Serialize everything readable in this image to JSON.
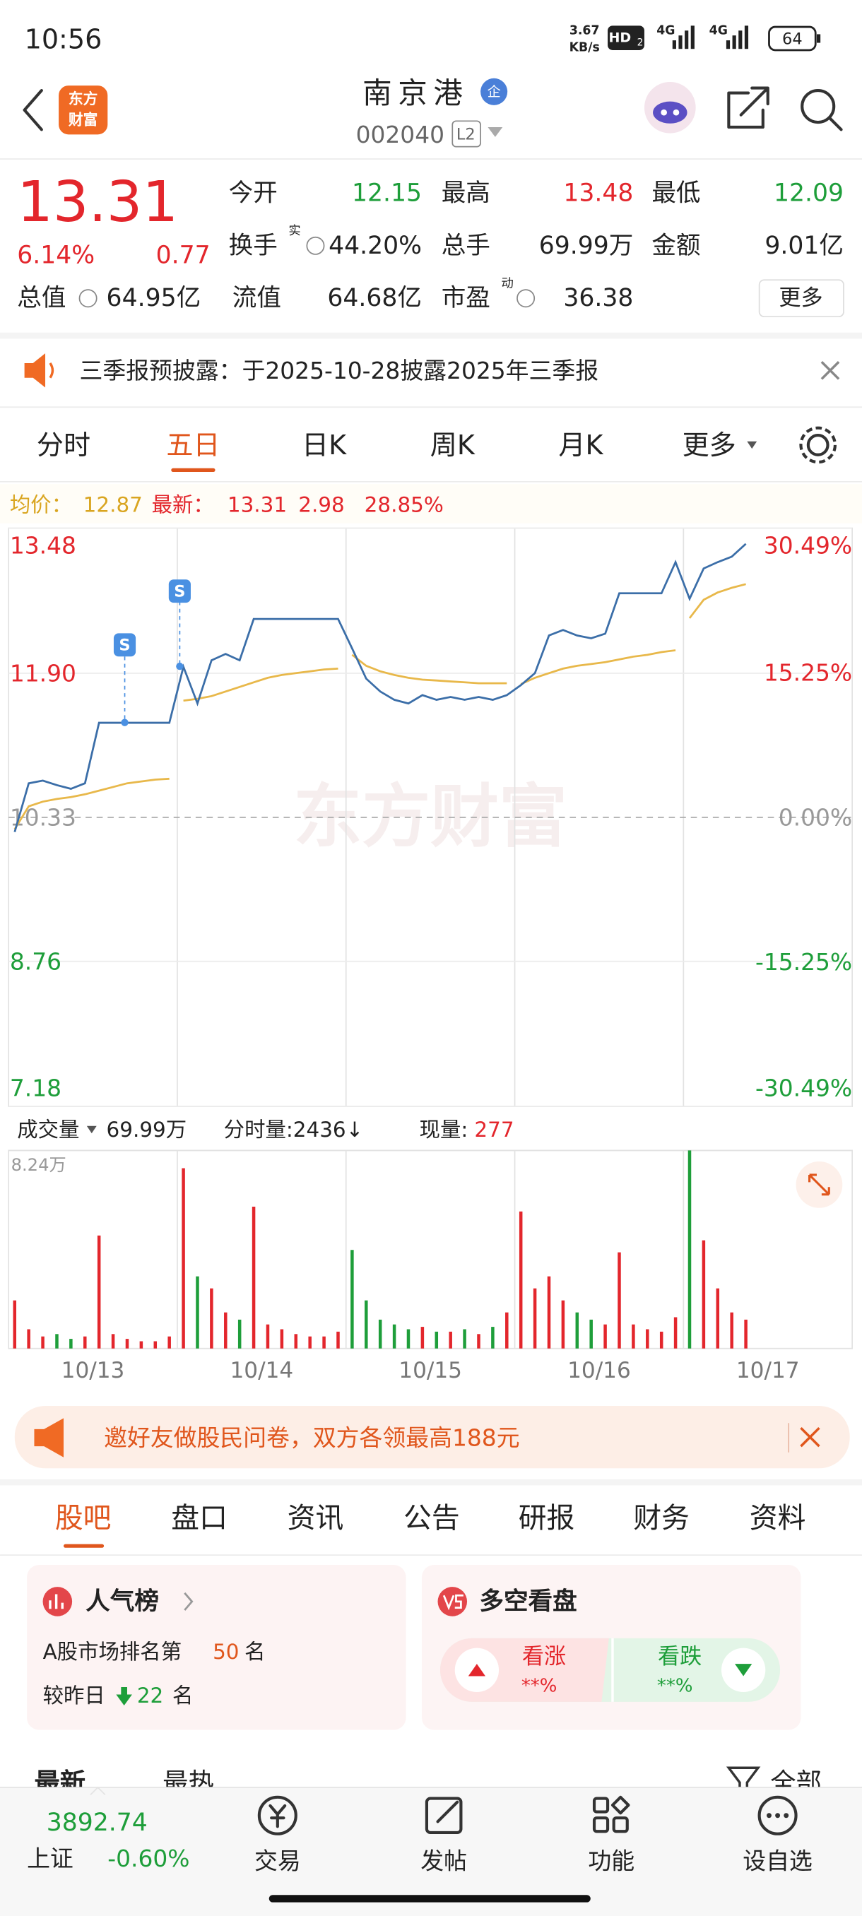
{
  "status_bar": {
    "time": "10:56",
    "speed": "3.67",
    "speed_unit": "KB/s",
    "hd": "HD",
    "hd_sub": "2",
    "network": [
      "4G",
      "4G"
    ],
    "battery": "64"
  },
  "header": {
    "logo": [
      "东方",
      "财富"
    ],
    "name": "南京港",
    "badge": "企",
    "code": "002040",
    "level": "L2"
  },
  "quote": {
    "price": "13.31",
    "change_pct": "6.14%",
    "change": "0.77",
    "fields": [
      [
        "今开",
        "12.15"
      ],
      [
        "最高",
        "13.48"
      ],
      [
        "最低",
        "12.09"
      ],
      [
        "换手",
        "44.20%"
      ],
      [
        "总手",
        "69.99万"
      ],
      [
        "金额",
        "9.01亿"
      ],
      [
        "总值",
        "64.95亿"
      ],
      [
        "流值",
        "64.68亿"
      ],
      [
        "市盈",
        "36.38"
      ]
    ],
    "turnover_sup": "实",
    "pe_sup": "动",
    "more": "更多"
  },
  "notice": "三季报预披露：于2025-10-28披露2025年三季报",
  "tabs": [
    "分时",
    "五日",
    "日K",
    "周K",
    "月K",
    "更多"
  ],
  "summary": {
    "avg_label": "均价：",
    "avg": "12.87",
    "latest_label": "最新：",
    "latest": "13.31",
    "change": "2.98",
    "change_pct": "28.85%"
  },
  "signals": [
    "S",
    "S"
  ],
  "chart_data": [
    {
      "type": "line",
      "watermark": "东方财富",
      "ylim": [
        7.18,
        13.48
      ],
      "yticks": [
        13.48,
        {
          "value": 11.9,
          "label": "11.90"
        },
        10.33,
        8.76,
        7.18
      ],
      "y2lim": [
        -30.49,
        30.49
      ],
      "y2ticks": [
        {
          "value": 30.49,
          "label": "30.49%"
        },
        {
          "value": 15.25,
          "label": "15.25%"
        },
        {
          "value": 0,
          "label": "0.00%"
        },
        {
          "value": -15.25,
          "label": "-15.25%"
        },
        {
          "value": -30.49,
          "label": "-30.49%"
        }
      ],
      "series": [
        {
          "color": "#3b6ea8",
          "values": [
            [
              10.17,
              10.7,
              10.73,
              10.68,
              10.64,
              10.7,
              11.36,
              11.36,
              11.36,
              11.36,
              11.36,
              11.36
            ],
            [
              11.97,
              11.57,
              12.04,
              12.11,
              12.04,
              12.49,
              12.49,
              12.49,
              12.49,
              12.49,
              12.49,
              12.49
            ],
            [
              12.17,
              11.84,
              11.7,
              11.61,
              11.57,
              11.66,
              11.61,
              11.64,
              11.61,
              11.64,
              11.61,
              11.66
            ],
            [
              11.77,
              11.9,
              12.31,
              12.37,
              12.31,
              12.28,
              12.33,
              12.77,
              12.77,
              12.77,
              12.77,
              13.11
            ],
            [
              12.71,
              13.04,
              13.11,
              13.17,
              13.31
            ]
          ]
        },
        {
          "color": "#e8b84a",
          "values": [
            [
              10.2,
              10.45,
              10.5,
              10.53,
              10.55,
              10.58,
              10.62,
              10.66,
              10.7,
              10.72,
              10.74,
              10.75
            ],
            [
              11.6,
              11.62,
              11.65,
              11.7,
              11.75,
              11.8,
              11.85,
              11.88,
              11.9,
              11.92,
              11.94,
              11.95
            ],
            [
              12.1,
              11.98,
              11.92,
              11.88,
              11.85,
              11.83,
              11.82,
              11.81,
              11.8,
              11.79,
              11.79,
              11.79
            ],
            [
              11.78,
              11.85,
              11.9,
              11.95,
              11.98,
              12.0,
              12.02,
              12.05,
              12.08,
              12.1,
              12.13,
              12.15
            ],
            [
              12.5,
              12.7,
              12.78,
              12.83,
              12.87
            ]
          ]
        }
      ]
    },
    {
      "type": "bar",
      "title": "成交量",
      "total": "69.99万",
      "tick_volume": "分时量:2436↓",
      "last_label": "现量:",
      "last": "277",
      "ylim": [
        0,
        8.24
      ],
      "yticks": [
        {
          "value": 8.24,
          "label": "8.24万"
        }
      ],
      "categories": [
        "10/13",
        "10/14",
        "10/15",
        "10/16",
        "10/17"
      ],
      "values": [
        [
          2.0,
          0.8,
          0.5,
          0.6,
          0.4,
          0.5,
          4.7,
          0.6,
          0.4,
          0.3,
          0.3,
          0.5
        ],
        [
          7.5,
          3.0,
          2.5,
          1.5,
          1.2,
          5.9,
          1.0,
          0.8,
          0.6,
          0.5,
          0.5,
          0.7
        ],
        [
          4.1,
          2.0,
          1.2,
          1.0,
          0.8,
          0.9,
          0.7,
          0.7,
          0.8,
          0.6,
          0.9,
          1.5
        ],
        [
          5.7,
          2.5,
          3.0,
          2.0,
          1.5,
          1.2,
          1.0,
          4.0,
          1.0,
          0.8,
          0.7,
          1.3
        ],
        [
          8.24,
          4.5,
          2.5,
          1.5,
          1.2
        ]
      ],
      "up_color": "#e3262c",
      "down_color": "#1e9e3a"
    }
  ],
  "banner": "邀好友做股民问卷，双方各领最高188元",
  "tabs2": [
    "股吧",
    "盘口",
    "资讯",
    "公告",
    "研报",
    "财务",
    "资料"
  ],
  "popularity": {
    "title": "人气榜",
    "rank_prefix": "A股市场排名第",
    "rank": "50",
    "rank_suffix": "名",
    "change_prefix": "较昨日",
    "change": "22",
    "change_suffix": "名"
  },
  "sentiment": {
    "title": "多空看盘",
    "bull": "看涨",
    "bull_value": "**%",
    "bear": "看跌",
    "bear_value": "**%"
  },
  "sort": {
    "latest": "最新",
    "hot": "最热",
    "all": "全部"
  },
  "bottom_nav": {
    "index_value": "3892.74",
    "index_name": "上证",
    "index_change": "-0.60%",
    "items": [
      "交易",
      "发帖",
      "功能",
      "设自选"
    ]
  }
}
